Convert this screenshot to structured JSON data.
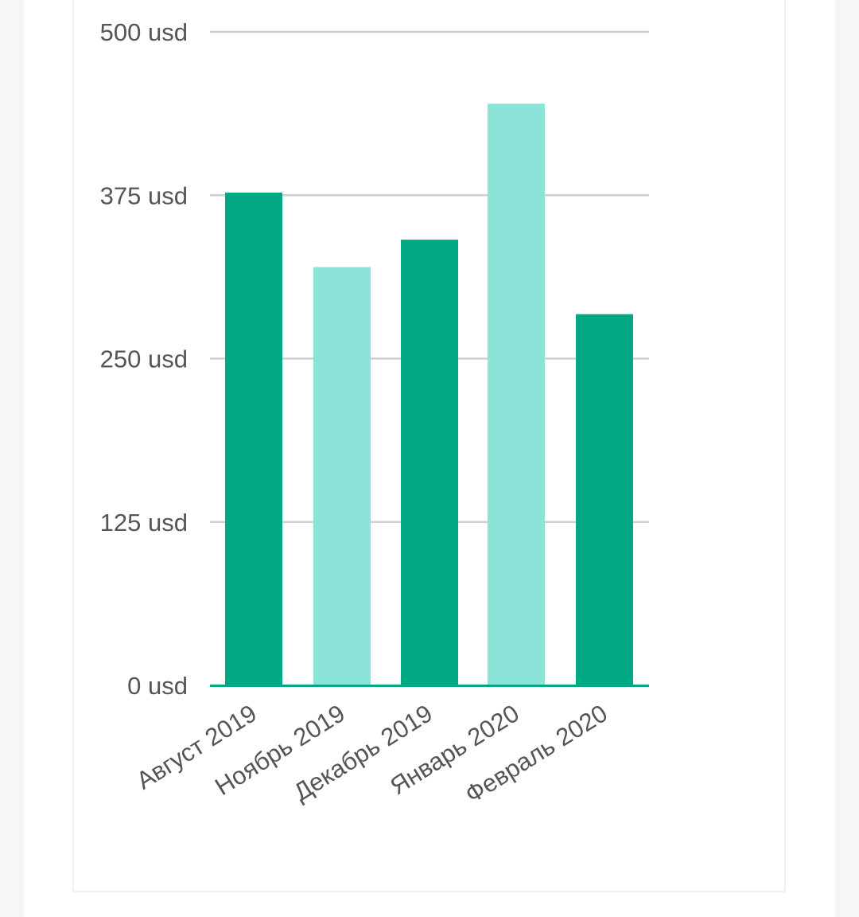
{
  "colors": {
    "dark_bar": "#00a984",
    "light_bar": "#8ce3d7",
    "grid": "#cfcfcf",
    "axis": "#00a984",
    "text": "#555555"
  },
  "chart_data": {
    "type": "bar",
    "title": "",
    "xlabel": "",
    "ylabel": "",
    "unit": "usd",
    "ylim": [
      0,
      500
    ],
    "yticks": [
      0,
      125,
      250,
      375,
      500
    ],
    "ytick_labels": [
      "0 usd",
      "125 usd",
      "250 usd",
      "375 usd",
      "500 usd"
    ],
    "grid": true,
    "categories": [
      "Август 2019",
      "Ноябрь 2019",
      "Декабрь 2019",
      "Январь 2020",
      "Февраль 2020"
    ],
    "values": [
      377,
      320,
      341,
      445,
      284
    ],
    "bar_colors": [
      "#00a984",
      "#8ce3d7",
      "#00a984",
      "#8ce3d7",
      "#00a984"
    ]
  }
}
